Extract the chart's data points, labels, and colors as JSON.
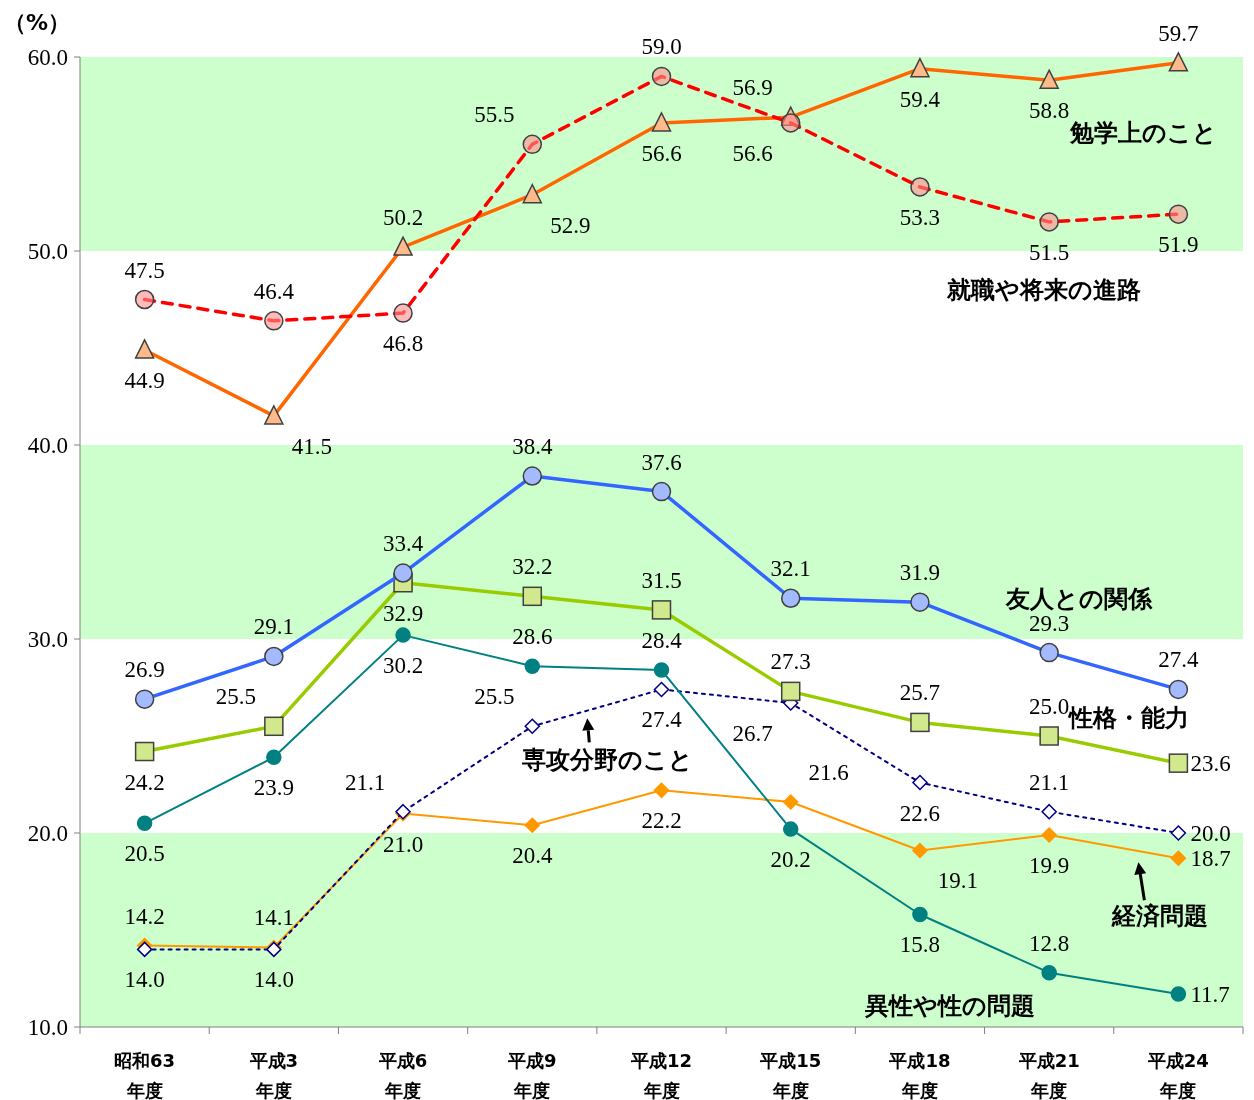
{
  "chart_data": {
    "type": "line",
    "ylabel": "（%）",
    "categories": [
      "昭和63\n年度",
      "平成3\n年度",
      "平成6\n年度",
      "平成9\n年度",
      "平成12\n年度",
      "平成15\n年度",
      "平成18\n年度",
      "平成21\n年度",
      "平成24\n年度"
    ],
    "ylim": [
      10,
      60
    ],
    "yticks": [
      {
        "value": 10,
        "label": "10.0"
      },
      {
        "value": 20,
        "label": "20.0"
      },
      {
        "value": 30,
        "label": "30.0"
      },
      {
        "value": 40,
        "label": "40.0"
      },
      {
        "value": 50,
        "label": "50.0"
      },
      {
        "value": 60,
        "label": "60.0"
      }
    ],
    "bands": [
      {
        "axis": "y",
        "from": 10,
        "to": 20,
        "color": "#ccffcc"
      },
      {
        "axis": "y",
        "from": 30,
        "to": 40,
        "color": "#ccffcc"
      },
      {
        "axis": "y",
        "from": 50,
        "to": 60,
        "color": "#ccffcc"
      }
    ],
    "series": [
      {
        "name": "勉学上のこと",
        "color": "#ff6600",
        "marker": "triangle",
        "line_style": "solid",
        "values": [
          44.9,
          41.5,
          50.2,
          52.9,
          56.6,
          56.9,
          59.4,
          58.8,
          59.7
        ],
        "value_labels": [
          "44.9",
          "41.5",
          "50.2",
          "52.9",
          "56.6",
          "56.9",
          "59.4",
          "58.8",
          "59.7"
        ]
      },
      {
        "name": "就職や将来の進路",
        "color": "#ff0000",
        "marker": "circle",
        "line_style": "dashed",
        "values": [
          47.5,
          46.4,
          46.8,
          55.5,
          59.0,
          56.6,
          53.3,
          51.5,
          51.9
        ],
        "value_labels": [
          "47.5",
          "46.4",
          "46.8",
          "55.5",
          "59.0",
          "56.6",
          "53.3",
          "51.5",
          "51.9"
        ]
      },
      {
        "name": "友人との関係",
        "color": "#3366ff",
        "marker": "circle",
        "line_style": "solid",
        "values": [
          26.9,
          29.1,
          33.4,
          38.4,
          37.6,
          32.1,
          31.9,
          29.3,
          27.4
        ],
        "value_labels": [
          "26.9",
          "29.1",
          "33.4",
          "38.4",
          "37.6",
          "32.1",
          "31.9",
          "29.3",
          "27.4"
        ]
      },
      {
        "name": "性格・能力",
        "color": "#99cc00",
        "marker": "square",
        "line_style": "solid",
        "values": [
          24.2,
          25.5,
          32.9,
          32.2,
          31.5,
          27.3,
          25.7,
          25.0,
          23.6
        ],
        "value_labels": [
          "24.2",
          "25.5",
          "32.9",
          "32.2",
          "31.5",
          "27.3",
          "25.7",
          "25.0",
          "23.6"
        ]
      },
      {
        "name": "異性や性の問題",
        "color": "#008080",
        "marker": "circle",
        "line_style": "solid",
        "values": [
          20.5,
          23.9,
          30.2,
          28.6,
          28.4,
          20.2,
          15.8,
          12.8,
          11.7
        ],
        "value_labels": [
          "20.5",
          "23.9",
          "30.2",
          "28.6",
          "28.4",
          "20.2",
          "15.8",
          "12.8",
          "11.7"
        ]
      },
      {
        "name": "専攻分野のこと",
        "color": "#000080",
        "marker": "diamond",
        "line_style": "dotted",
        "values": [
          14.0,
          14.0,
          21.1,
          25.5,
          27.4,
          26.7,
          22.6,
          21.1,
          20.0
        ],
        "value_labels": [
          "14.0",
          "14.0",
          "21.1",
          "25.5",
          "27.4",
          "26.7",
          "22.6",
          "21.1",
          "20.0"
        ]
      },
      {
        "name": "経済問題",
        "color": "#ff9900",
        "marker": "diamond",
        "line_style": "solid",
        "values": [
          14.2,
          14.1,
          21.0,
          20.4,
          22.2,
          21.6,
          19.1,
          19.9,
          18.7
        ],
        "value_labels": [
          "14.2",
          "14.1",
          "21.0",
          "20.4",
          "22.2",
          "21.6",
          "19.1",
          "19.9",
          "18.7"
        ]
      }
    ]
  }
}
